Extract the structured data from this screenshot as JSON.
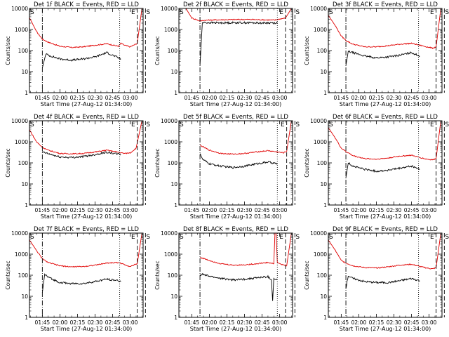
{
  "chart_data": [
    {
      "type": "line",
      "title": "Det 1f BLACK = Events, RED = LLD",
      "xlabel": "Start Time (27-Aug-12 01:34:00)",
      "ylabel": "Counts/sec",
      "xticks": [
        "01:45",
        "02:00",
        "02:15",
        "02:30",
        "02:45",
        "03:00"
      ],
      "yticks": [
        "1",
        "10",
        "100",
        "1000",
        "10000"
      ],
      "xlim": [
        "01:34",
        "03:11"
      ],
      "ylim": [
        1,
        10000
      ],
      "yscale": "log",
      "corner_labels": [
        "S",
        "E",
        "S"
      ],
      "vlines": [
        {
          "t": 105,
          "style": "dashdot"
        },
        {
          "t": 171,
          "style": "dotted"
        },
        {
          "t": 186,
          "style": "dashed"
        },
        {
          "t": 193,
          "style": "dashed"
        }
      ],
      "series": [
        {
          "name": "LLD",
          "color": "#e00000",
          "x": [
            90,
            100,
            105,
            110,
            120,
            130,
            140,
            150,
            160,
            170,
            172,
            175,
            180,
            186,
            190,
            193,
            200
          ],
          "y": [
            10000,
            800,
            350,
            250,
            160,
            140,
            150,
            180,
            210,
            160,
            220,
            180,
            150,
            220,
            10000,
            10000,
            10000
          ]
        },
        {
          "name": "Events",
          "color": "#000000",
          "x": [
            105,
            108,
            110,
            120,
            130,
            140,
            150,
            160,
            170,
            172
          ],
          "y": [
            15,
            70,
            60,
            40,
            35,
            40,
            50,
            80,
            45,
            40
          ]
        }
      ]
    },
    {
      "type": "line",
      "title": "Det 2f BLACK = Events, RED = LLD",
      "xlabel": "Start Time (27-Aug-12 01:34:00)",
      "ylabel": "Counts/sec",
      "xticks": [
        "01:45",
        "02:00",
        "02:15",
        "02:30",
        "02:45",
        "03:00"
      ],
      "yticks": [
        "1",
        "10",
        "100",
        "1000",
        "10000"
      ],
      "xlim": [
        "01:34",
        "03:11"
      ],
      "ylim": [
        1,
        10000
      ],
      "yscale": "log",
      "corner_labels": [
        "S",
        "E",
        "S"
      ],
      "vlines": [
        {
          "t": 112,
          "style": "dashdot"
        },
        {
          "t": 178,
          "style": "dotted"
        },
        {
          "t": 185,
          "style": "dashed"
        },
        {
          "t": 193,
          "style": "dashed"
        }
      ],
      "series": [
        {
          "name": "LLD",
          "color": "#e00000",
          "x": [
            90,
            100,
            105,
            110,
            112,
            115,
            120,
            130,
            140,
            150,
            160,
            170,
            176,
            178,
            185,
            190,
            193,
            200
          ],
          "y": [
            10000,
            10000,
            3500,
            2800,
            2500,
            2700,
            2800,
            2900,
            2950,
            3000,
            2950,
            2850,
            2800,
            3000,
            3500,
            10000,
            10000,
            10000
          ]
        },
        {
          "name": "Events",
          "color": "#000000",
          "x": [
            112,
            114,
            120,
            130,
            140,
            150,
            160,
            170,
            178
          ],
          "y": [
            20,
            2100,
            2100,
            2050,
            2100,
            2100,
            2050,
            2050,
            2050
          ]
        }
      ]
    },
    {
      "type": "line",
      "title": "Det 3f BLACK = Events, RED = LLD",
      "xlabel": "Start Time (27-Aug-12 01:34:00)",
      "ylabel": "Counts/sec",
      "xticks": [
        "01:45",
        "02:00",
        "02:15",
        "02:30",
        "02:45",
        "03:00"
      ],
      "yticks": [
        "1",
        "10",
        "100",
        "1000",
        "10000"
      ],
      "xlim": [
        "01:34",
        "03:11"
      ],
      "ylim": [
        1,
        10000
      ],
      "yscale": "log",
      "corner_labels": [
        "S",
        "E",
        "S"
      ],
      "vlines": [
        {
          "t": 109,
          "style": "dashdot"
        },
        {
          "t": 171,
          "style": "dotted"
        },
        {
          "t": 186,
          "style": "dashed"
        },
        {
          "t": 193,
          "style": "dashed"
        }
      ],
      "series": [
        {
          "name": "LLD",
          "color": "#e00000",
          "x": [
            90,
            100,
            105,
            109,
            115,
            125,
            135,
            145,
            155,
            165,
            172,
            178,
            183,
            186,
            190,
            193,
            200
          ],
          "y": [
            10000,
            1500,
            500,
            300,
            200,
            150,
            150,
            170,
            200,
            220,
            180,
            150,
            130,
            150,
            10000,
            10000,
            10000
          ]
        },
        {
          "name": "Events",
          "color": "#000000",
          "x": [
            109,
            111,
            115,
            125,
            135,
            145,
            155,
            165,
            172
          ],
          "y": [
            20,
            90,
            80,
            55,
            45,
            50,
            60,
            80,
            55
          ]
        }
      ]
    },
    {
      "type": "line",
      "title": "Det 4f BLACK = Events, RED = LLD",
      "xlabel": "Start Time (27-Aug-12 01:34:00)",
      "ylabel": "Counts/sec",
      "xticks": [
        "01:45",
        "02:00",
        "02:15",
        "02:30",
        "02:45",
        "03:00"
      ],
      "yticks": [
        "1",
        "10",
        "100",
        "1000",
        "10000"
      ],
      "xlim": [
        "01:34",
        "03:11"
      ],
      "ylim": [
        1,
        10000
      ],
      "yscale": "log",
      "corner_labels": [
        "S",
        "E",
        "S"
      ],
      "vlines": [
        {
          "t": 105,
          "style": "dashdot"
        },
        {
          "t": 171,
          "style": "dotted"
        },
        {
          "t": 186,
          "style": "dashed"
        },
        {
          "t": 193,
          "style": "dashed"
        }
      ],
      "series": [
        {
          "name": "LLD",
          "color": "#e00000",
          "x": [
            90,
            95,
            100,
            105,
            110,
            120,
            130,
            140,
            150,
            160,
            170,
            175,
            180,
            185,
            190,
            195,
            200
          ],
          "y": [
            10000,
            3000,
            1000,
            550,
            400,
            280,
            270,
            280,
            330,
            400,
            320,
            280,
            300,
            500,
            10000,
            10000,
            10000
          ]
        },
        {
          "name": "Events",
          "color": "#000000",
          "x": [
            105,
            110,
            120,
            130,
            140,
            150,
            160,
            170,
            172
          ],
          "y": [
            330,
            270,
            190,
            180,
            200,
            250,
            320,
            260,
            250
          ]
        }
      ]
    },
    {
      "type": "line",
      "title": "Det 5f BLACK = Events, RED = LLD",
      "xlabel": "Start Time (27-Aug-12 01:34:00)",
      "ylabel": "Counts/sec",
      "xticks": [
        "01:45",
        "02:00",
        "02:15",
        "02:30",
        "02:45",
        "03:00"
      ],
      "yticks": [
        "1",
        "10",
        "100",
        "1000",
        "10000"
      ],
      "xlim": [
        "01:34",
        "03:11"
      ],
      "ylim": [
        1,
        10000
      ],
      "yscale": "log",
      "corner_labels": [
        "S",
        "E",
        "S"
      ],
      "vlines": [
        {
          "t": 112,
          "style": "dashdot"
        },
        {
          "t": 178,
          "style": "dotted"
        },
        {
          "t": 186,
          "style": "dashed"
        },
        {
          "t": 193,
          "style": "dashed"
        }
      ],
      "series": [
        {
          "name": "LLD",
          "color": "#e00000",
          "x": [
            112,
            114,
            120,
            130,
            140,
            150,
            160,
            170,
            178,
            183,
            186,
            190,
            193,
            200
          ],
          "y": [
            700,
            600,
            400,
            280,
            260,
            280,
            330,
            380,
            330,
            300,
            350,
            10000,
            10000,
            10000
          ]
        },
        {
          "name": "Events",
          "color": "#000000",
          "x": [
            112,
            114,
            120,
            130,
            140,
            150,
            160,
            170,
            178
          ],
          "y": [
            300,
            150,
            90,
            70,
            60,
            70,
            90,
            110,
            90
          ]
        }
      ]
    },
    {
      "type": "line",
      "title": "Det 6f BLACK = Events, RED = LLD",
      "xlabel": "Start Time (27-Aug-12 01:34:00)",
      "ylabel": "Counts/sec",
      "xticks": [
        "01:45",
        "02:00",
        "02:15",
        "02:30",
        "02:45",
        "03:00"
      ],
      "yticks": [
        "1",
        "10",
        "100",
        "1000",
        "10000"
      ],
      "xlim": [
        "01:34",
        "03:11"
      ],
      "ylim": [
        1,
        10000
      ],
      "yscale": "log",
      "corner_labels": [
        "S",
        "E",
        "S"
      ],
      "vlines": [
        {
          "t": 109,
          "style": "dashdot"
        },
        {
          "t": 171,
          "style": "dotted"
        },
        {
          "t": 186,
          "style": "dashed"
        },
        {
          "t": 193,
          "style": "dashed"
        }
      ],
      "series": [
        {
          "name": "LLD",
          "color": "#e00000",
          "x": [
            90,
            100,
            105,
            109,
            115,
            125,
            135,
            145,
            155,
            165,
            172,
            178,
            183,
            186,
            190,
            193,
            200
          ],
          "y": [
            10000,
            1500,
            500,
            350,
            220,
            160,
            150,
            170,
            210,
            230,
            180,
            150,
            140,
            160,
            10000,
            10000,
            10000
          ]
        },
        {
          "name": "Events",
          "color": "#000000",
          "x": [
            109,
            111,
            115,
            125,
            135,
            145,
            155,
            165,
            172
          ],
          "y": [
            20,
            100,
            70,
            50,
            40,
            45,
            55,
            70,
            50
          ]
        }
      ]
    },
    {
      "type": "line",
      "title": "Det 7f BLACK = Events, RED = LLD",
      "xlabel": "Start Time (27-Aug-12 01:34:00)",
      "ylabel": "Counts/sec",
      "xticks": [
        "01:45",
        "02:00",
        "02:15",
        "02:30",
        "02:45",
        "03:00"
      ],
      "yticks": [
        "1",
        "10",
        "100",
        "1000",
        "10000"
      ],
      "xlim": [
        "01:34",
        "03:11"
      ],
      "ylim": [
        1,
        10000
      ],
      "yscale": "log",
      "corner_labels": [
        "S",
        "E",
        "S"
      ],
      "vlines": [
        {
          "t": 105,
          "style": "dashdot"
        },
        {
          "t": 171,
          "style": "dotted"
        },
        {
          "t": 186,
          "style": "dashed"
        },
        {
          "t": 193,
          "style": "dashed"
        }
      ],
      "series": [
        {
          "name": "LLD",
          "color": "#e00000",
          "x": [
            90,
            100,
            105,
            110,
            120,
            130,
            140,
            150,
            160,
            170,
            175,
            180,
            186,
            190,
            193,
            200
          ],
          "y": [
            10000,
            1500,
            600,
            400,
            280,
            250,
            260,
            300,
            380,
            400,
            320,
            260,
            350,
            10000,
            10000,
            10000
          ]
        },
        {
          "name": "Events",
          "color": "#000000",
          "x": [
            105,
            107,
            110,
            120,
            130,
            140,
            150,
            160,
            170,
            172
          ],
          "y": [
            15,
            110,
            80,
            45,
            40,
            40,
            50,
            65,
            55,
            50
          ]
        }
      ]
    },
    {
      "type": "line",
      "title": "Det 8f BLACK = Events, RED = LLD",
      "xlabel": "Start Time (27-Aug-12 01:34:00)",
      "ylabel": "Counts/sec",
      "xticks": [
        "01:45",
        "02:00",
        "02:15",
        "02:30",
        "02:45",
        "03:00"
      ],
      "yticks": [
        "1",
        "10",
        "100",
        "1000",
        "10000"
      ],
      "xlim": [
        "01:34",
        "03:11"
      ],
      "ylim": [
        1,
        10000
      ],
      "yscale": "log",
      "corner_labels": [
        "S",
        "E",
        "S"
      ],
      "vlines": [
        {
          "t": 112,
          "style": "dashdot"
        },
        {
          "t": 178,
          "style": "dotted"
        },
        {
          "t": 185,
          "style": "dashed"
        },
        {
          "t": 193,
          "style": "dashed"
        }
      ],
      "series": [
        {
          "name": "LLD",
          "color": "#e00000",
          "x": [
            112,
            114,
            120,
            130,
            140,
            150,
            160,
            170,
            175,
            176,
            177,
            178,
            182,
            186,
            190,
            193,
            200
          ],
          "y": [
            700,
            650,
            500,
            350,
            300,
            310,
            350,
            400,
            350,
            10000,
            10000,
            400,
            320,
            280,
            10000,
            10000,
            10000
          ]
        },
        {
          "name": "Events",
          "color": "#000000",
          "x": [
            112,
            114,
            120,
            130,
            140,
            150,
            160,
            170,
            173,
            174,
            175,
            178
          ],
          "y": [
            100,
            110,
            90,
            70,
            60,
            65,
            75,
            85,
            60,
            6,
            70,
            60
          ]
        }
      ]
    },
    {
      "type": "line",
      "title": "Det 9f BLACK = Events, RED = LLD",
      "xlabel": "Start Time (27-Aug-12 01:34:00)",
      "ylabel": "Counts/sec",
      "xticks": [
        "01:45",
        "02:00",
        "02:15",
        "02:30",
        "02:45",
        "03:00"
      ],
      "yticks": [
        "1",
        "10",
        "100",
        "1000",
        "10000"
      ],
      "xlim": [
        "01:34",
        "03:11"
      ],
      "ylim": [
        1,
        10000
      ],
      "yscale": "log",
      "corner_labels": [
        "S",
        "E",
        "S"
      ],
      "vlines": [
        {
          "t": 109,
          "style": "dashdot"
        },
        {
          "t": 171,
          "style": "dotted"
        },
        {
          "t": 186,
          "style": "dashed"
        },
        {
          "t": 193,
          "style": "dashed"
        }
      ],
      "series": [
        {
          "name": "LLD",
          "color": "#e00000",
          "x": [
            90,
            100,
            105,
            109,
            115,
            125,
            135,
            145,
            155,
            165,
            172,
            178,
            183,
            186,
            190,
            193,
            200
          ],
          "y": [
            10000,
            1500,
            500,
            380,
            280,
            230,
            220,
            250,
            300,
            330,
            260,
            220,
            200,
            230,
            10000,
            10000,
            10000
          ]
        },
        {
          "name": "Events",
          "color": "#000000",
          "x": [
            109,
            111,
            115,
            125,
            135,
            145,
            155,
            165,
            172
          ],
          "y": [
            25,
            95,
            70,
            50,
            45,
            45,
            55,
            70,
            55
          ]
        }
      ]
    }
  ]
}
